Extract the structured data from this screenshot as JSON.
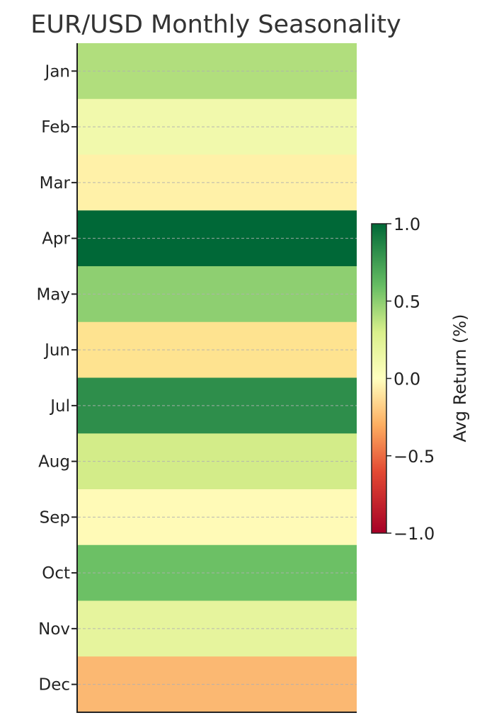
{
  "chart_data": {
    "type": "heatmap",
    "title": "EUR/USD Monthly Seasonality",
    "categories": [
      "Jan",
      "Feb",
      "Mar",
      "Apr",
      "May",
      "Jun",
      "Jul",
      "Aug",
      "Sep",
      "Oct",
      "Nov",
      "Dec"
    ],
    "values": [
      0.45,
      0.12,
      -0.15,
      1.0,
      0.55,
      -0.3,
      0.85,
      0.35,
      -0.05,
      0.65,
      0.22,
      -0.45
    ],
    "grid": true,
    "colorbar": {
      "label": "Avg Return (%)",
      "range": [
        -1.0,
        1.0
      ],
      "ticks": [
        1.0,
        0.5,
        0.0,
        -0.5,
        -1.0
      ],
      "tick_labels": [
        "1.0",
        "0.5",
        "0.0",
        "−0.5",
        "−1.0"
      ],
      "colormap": "RdYlGn",
      "colors": [
        "#a50026",
        "#f46d43",
        "#fee08b",
        "#ffffbf",
        "#d9ef8b",
        "#66bd63",
        "#006837"
      ]
    }
  }
}
